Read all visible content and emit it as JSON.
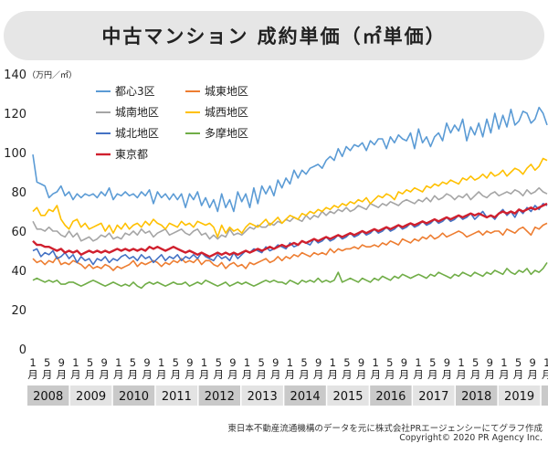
{
  "header": {
    "title": "中古マンション 成約単価（㎡単価）"
  },
  "footer": {
    "source": "東日本不動産流通機構のデータを元に株式会社PRエージェンシーにてグラフ作成",
    "copyright": "Copyright© 2020 PR Agency Inc."
  },
  "chart_data": {
    "type": "line",
    "title": "中古マンション 成約単価（㎡単価）",
    "ylabel": "（万円／㎡）",
    "ylim": [
      0,
      140
    ],
    "yticks": [
      0,
      20,
      40,
      60,
      80,
      100,
      120,
      140
    ],
    "grid": false,
    "legend": "top-left",
    "x_start": "2008-01",
    "x_step_months": 2,
    "month_tick_labels": [
      "1",
      "5",
      "9"
    ],
    "month_unit": "月",
    "years": [
      "2008",
      "2009",
      "2010",
      "2011",
      "2012",
      "2013",
      "2014",
      "2015",
      "2016",
      "2017",
      "2018",
      "2019"
    ],
    "series": [
      {
        "name": "都心3区",
        "color": "#5b9bd5",
        "values": [
          99,
          85,
          84,
          83,
          77,
          79,
          80,
          83,
          78,
          80,
          76,
          79,
          77,
          79,
          78,
          79,
          77,
          80,
          78,
          82,
          76,
          79,
          78,
          80,
          78,
          79,
          77,
          80,
          78,
          81,
          74,
          80,
          77,
          79,
          76,
          79,
          76,
          79,
          72,
          79,
          76,
          80,
          73,
          77,
          72,
          76,
          70,
          79,
          72,
          76,
          70,
          80,
          75,
          79,
          72,
          82,
          74,
          83,
          79,
          83,
          78,
          86,
          82,
          87,
          84,
          91,
          87,
          91,
          89,
          92,
          93,
          94,
          92,
          96,
          98,
          96,
          102,
          98,
          103,
          101,
          104,
          103,
          105,
          101,
          106,
          104,
          107,
          107,
          102,
          108,
          105,
          109,
          107,
          106,
          110,
          102,
          112,
          105,
          108,
          103,
          108,
          110,
          106,
          115,
          110,
          114,
          111,
          117,
          106,
          113,
          109,
          115,
          108,
          117,
          110,
          120,
          112,
          119,
          113,
          122,
          114,
          116,
          121,
          120,
          115,
          117,
          123,
          120,
          114
        ]
      },
      {
        "name": "城東地区",
        "color": "#ed7d31",
        "values": [
          46,
          44,
          45,
          43,
          45,
          44,
          47,
          43,
          44,
          43,
          45,
          44,
          43,
          41,
          43,
          41,
          42,
          41,
          43,
          42,
          40,
          42,
          41,
          42,
          43,
          45,
          42,
          44,
          43,
          44,
          45,
          44,
          42,
          44,
          43,
          45,
          44,
          46,
          44,
          45,
          44,
          46,
          43,
          45,
          45,
          43,
          42,
          44,
          41,
          43,
          44,
          42,
          43,
          41,
          44,
          43,
          44,
          45,
          46,
          44,
          45,
          47,
          45,
          47,
          46,
          48,
          47,
          49,
          48,
          47,
          49,
          48,
          49,
          48,
          51,
          49,
          51,
          50,
          51,
          51,
          52,
          51,
          53,
          52,
          52,
          53,
          52,
          54,
          53,
          55,
          54,
          53,
          56,
          55,
          54,
          56,
          55,
          57,
          56,
          58,
          56,
          57,
          59,
          57,
          58,
          59,
          60,
          59,
          57,
          58,
          59,
          60,
          58,
          60,
          59,
          60,
          60,
          58,
          61,
          60,
          59,
          61,
          62,
          60,
          58,
          62,
          61,
          63,
          64
        ]
      },
      {
        "name": "城南地区",
        "color": "#a5a5a5",
        "values": [
          65,
          61,
          61,
          60,
          62,
          60,
          60,
          58,
          57,
          60,
          57,
          59,
          55,
          56,
          57,
          55,
          56,
          58,
          57,
          59,
          56,
          57,
          56,
          59,
          58,
          60,
          58,
          61,
          59,
          60,
          57,
          59,
          60,
          61,
          58,
          59,
          60,
          61,
          59,
          58,
          60,
          61,
          58,
          59,
          56,
          58,
          56,
          58,
          57,
          61,
          58,
          59,
          58,
          60,
          62,
          61,
          63,
          62,
          62,
          64,
          63,
          65,
          64,
          66,
          65,
          67,
          66,
          65,
          68,
          66,
          68,
          67,
          70,
          68,
          70,
          69,
          71,
          70,
          72,
          70,
          71,
          73,
          72,
          71,
          74,
          73,
          72,
          74,
          73,
          75,
          74,
          73,
          75,
          76,
          75,
          74,
          76,
          75,
          77,
          75,
          78,
          76,
          77,
          79,
          78,
          76,
          78,
          77,
          79,
          76,
          78,
          80,
          78,
          77,
          79,
          80,
          78,
          79,
          80,
          79,
          81,
          80,
          78,
          81,
          79,
          80,
          82,
          80,
          79
        ]
      },
      {
        "name": "城西地区",
        "color": "#ffc000",
        "values": [
          70,
          72,
          68,
          68,
          71,
          70,
          73,
          66,
          63,
          61,
          65,
          66,
          62,
          64,
          61,
          62,
          63,
          64,
          60,
          63,
          59,
          63,
          61,
          64,
          61,
          63,
          64,
          62,
          65,
          63,
          66,
          64,
          63,
          61,
          64,
          63,
          62,
          65,
          63,
          64,
          62,
          65,
          64,
          63,
          64,
          62,
          57,
          63,
          59,
          62,
          60,
          61,
          59,
          62,
          64,
          63,
          62,
          64,
          66,
          63,
          65,
          67,
          64,
          66,
          68,
          67,
          66,
          69,
          68,
          70,
          69,
          71,
          70,
          72,
          71,
          73,
          72,
          74,
          73,
          75,
          74,
          76,
          75,
          77,
          74,
          76,
          78,
          77,
          79,
          78,
          76,
          80,
          79,
          81,
          80,
          82,
          81,
          80,
          83,
          82,
          84,
          83,
          85,
          84,
          86,
          85,
          84,
          87,
          86,
          88,
          86,
          87,
          89,
          87,
          90,
          88,
          89,
          91,
          88,
          90,
          92,
          91,
          89,
          92,
          94,
          91,
          93,
          97,
          96
        ]
      },
      {
        "name": "城北地区",
        "color": "#4472c4",
        "values": [
          50,
          51,
          47,
          49,
          48,
          50,
          46,
          47,
          49,
          46,
          48,
          44,
          47,
          45,
          46,
          43,
          46,
          45,
          47,
          44,
          46,
          45,
          47,
          48,
          46,
          47,
          45,
          48,
          46,
          47,
          44,
          46,
          48,
          45,
          47,
          46,
          48,
          45,
          47,
          46,
          48,
          46,
          49,
          47,
          46,
          45,
          48,
          46,
          47,
          45,
          49,
          46,
          48,
          50,
          49,
          51,
          50,
          49,
          52,
          50,
          51,
          53,
          52,
          51,
          54,
          52,
          53,
          55,
          54,
          53,
          56,
          54,
          55,
          57,
          55,
          56,
          58,
          56,
          57,
          59,
          57,
          58,
          60,
          58,
          59,
          61,
          59,
          60,
          62,
          60,
          61,
          63,
          61,
          62,
          64,
          62,
          63,
          65,
          63,
          64,
          66,
          64,
          65,
          67,
          65,
          66,
          68,
          66,
          67,
          69,
          66,
          68,
          70,
          67,
          68,
          66,
          69,
          71,
          68,
          70,
          67,
          71,
          69,
          72,
          70,
          73,
          71,
          74,
          73
        ]
      },
      {
        "name": "多摩地区",
        "color": "#70ad47",
        "values": [
          35,
          36,
          35,
          34,
          35,
          34,
          35,
          33,
          33,
          34,
          34,
          33,
          32,
          33,
          34,
          35,
          34,
          33,
          32,
          33,
          34,
          33,
          32,
          33,
          32,
          34,
          32,
          31,
          33,
          34,
          33,
          34,
          33,
          32,
          33,
          34,
          33,
          33,
          34,
          32,
          33,
          34,
          33,
          35,
          34,
          33,
          32,
          33,
          34,
          32,
          33,
          34,
          33,
          34,
          33,
          32,
          33,
          34,
          35,
          34,
          35,
          34,
          34,
          33,
          35,
          34,
          33,
          35,
          34,
          35,
          34,
          36,
          34,
          35,
          34,
          35,
          39,
          34,
          35,
          36,
          35,
          34,
          36,
          35,
          34,
          36,
          35,
          37,
          36,
          35,
          37,
          36,
          38,
          37,
          36,
          37,
          38,
          37,
          36,
          38,
          37,
          39,
          38,
          37,
          36,
          38,
          37,
          39,
          38,
          37,
          39,
          38,
          37,
          39,
          38,
          40,
          39,
          38,
          41,
          39,
          38,
          40,
          39,
          41,
          38,
          40,
          39,
          41,
          44
        ]
      },
      {
        "name": "東京都",
        "color": "#d0202e",
        "values": [
          55,
          53,
          53,
          52,
          52,
          51,
          50,
          51,
          49,
          50,
          49,
          50,
          48,
          49,
          50,
          49,
          50,
          49,
          50,
          49,
          50,
          51,
          50,
          51,
          50,
          51,
          50,
          51,
          50,
          52,
          51,
          52,
          51,
          50,
          51,
          52,
          51,
          50,
          49,
          50,
          49,
          48,
          49,
          48,
          47,
          48,
          49,
          48,
          49,
          48,
          49,
          48,
          49,
          50,
          49,
          50,
          51,
          50,
          51,
          52,
          51,
          52,
          53,
          52,
          53,
          54,
          53,
          55,
          54,
          55,
          56,
          55,
          56,
          57,
          56,
          57,
          58,
          57,
          58,
          59,
          58,
          59,
          60,
          59,
          60,
          61,
          60,
          61,
          62,
          61,
          62,
          63,
          62,
          63,
          64,
          63,
          64,
          65,
          64,
          65,
          66,
          65,
          66,
          67,
          66,
          67,
          68,
          67,
          68,
          69,
          68,
          69,
          68,
          67,
          68,
          67,
          69,
          70,
          69,
          70,
          69,
          71,
          70,
          71,
          72,
          71,
          72,
          73,
          74
        ]
      }
    ]
  }
}
